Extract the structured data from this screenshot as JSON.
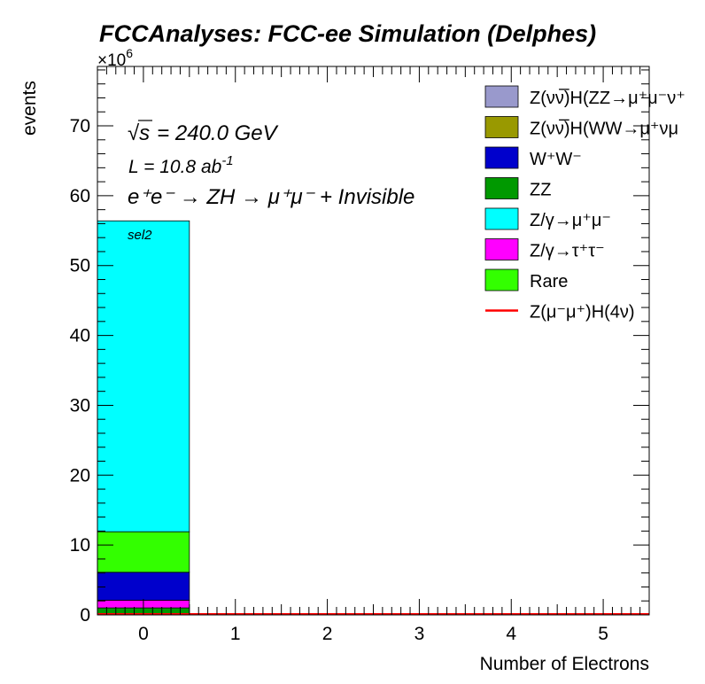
{
  "chart_data": {
    "type": "bar",
    "stacked": true,
    "title": "FCCAnalyses: FCC-ee Simulation (Delphes)",
    "xlabel": "Number of Electrons",
    "ylabel": "events",
    "y_multiplier": "×10",
    "y_multiplier_exp": "6",
    "xlim": [
      -0.5,
      5.5
    ],
    "ylim": [
      0,
      78.5
    ],
    "xticks": [
      "0",
      "1",
      "2",
      "3",
      "4",
      "5"
    ],
    "yticks": [
      "0",
      "10",
      "20",
      "30",
      "40",
      "50",
      "60",
      "70"
    ],
    "categories": [
      "0"
    ],
    "grid": false,
    "legend_position": "top-right",
    "annotations": {
      "energy_sqrt": "√",
      "energy_s": "s",
      "energy_rest": "= 240.0 GeV",
      "lumi": "L = 10.8 ab",
      "lumi_exp": "-1",
      "process": "e⁺e⁻ → ZH → μ⁺μ⁻ + Invisible",
      "selection": "sel2"
    },
    "series": [
      {
        "name": "Z(νν̅)H(ZZ→μ⁺μ⁻ν⁺",
        "color": "#9999cc",
        "values": [
          0.0
        ]
      },
      {
        "name": "Z(νν̅)H(WW→μ⁺νμ",
        "color": "#999900",
        "values": [
          0.0
        ]
      },
      {
        "name": "W⁺W⁻",
        "color": "#0000cc",
        "values": [
          4.0
        ]
      },
      {
        "name": "ZZ",
        "color": "#009900",
        "values": [
          1.0
        ]
      },
      {
        "name": "Z/γ→μ⁺μ⁻",
        "color": "#00ffff",
        "values": [
          44.5
        ]
      },
      {
        "name": "Z/γ→τ⁺τ⁻",
        "color": "#ff00ff",
        "values": [
          1.1
        ]
      },
      {
        "name": "Rare",
        "color": "#33ff00",
        "values": [
          5.8
        ]
      },
      {
        "name": "Z(μ⁻μ⁺)H(4ν)",
        "color": "#ff0000",
        "values": [
          0.0
        ],
        "style": "line"
      }
    ],
    "stack_order_bottom_to_top": [
      "ZZ",
      "Z/γ→τ⁺τ⁻",
      "W⁺W⁻",
      "Rare",
      "Z/γ→μ⁺μ⁻"
    ]
  }
}
